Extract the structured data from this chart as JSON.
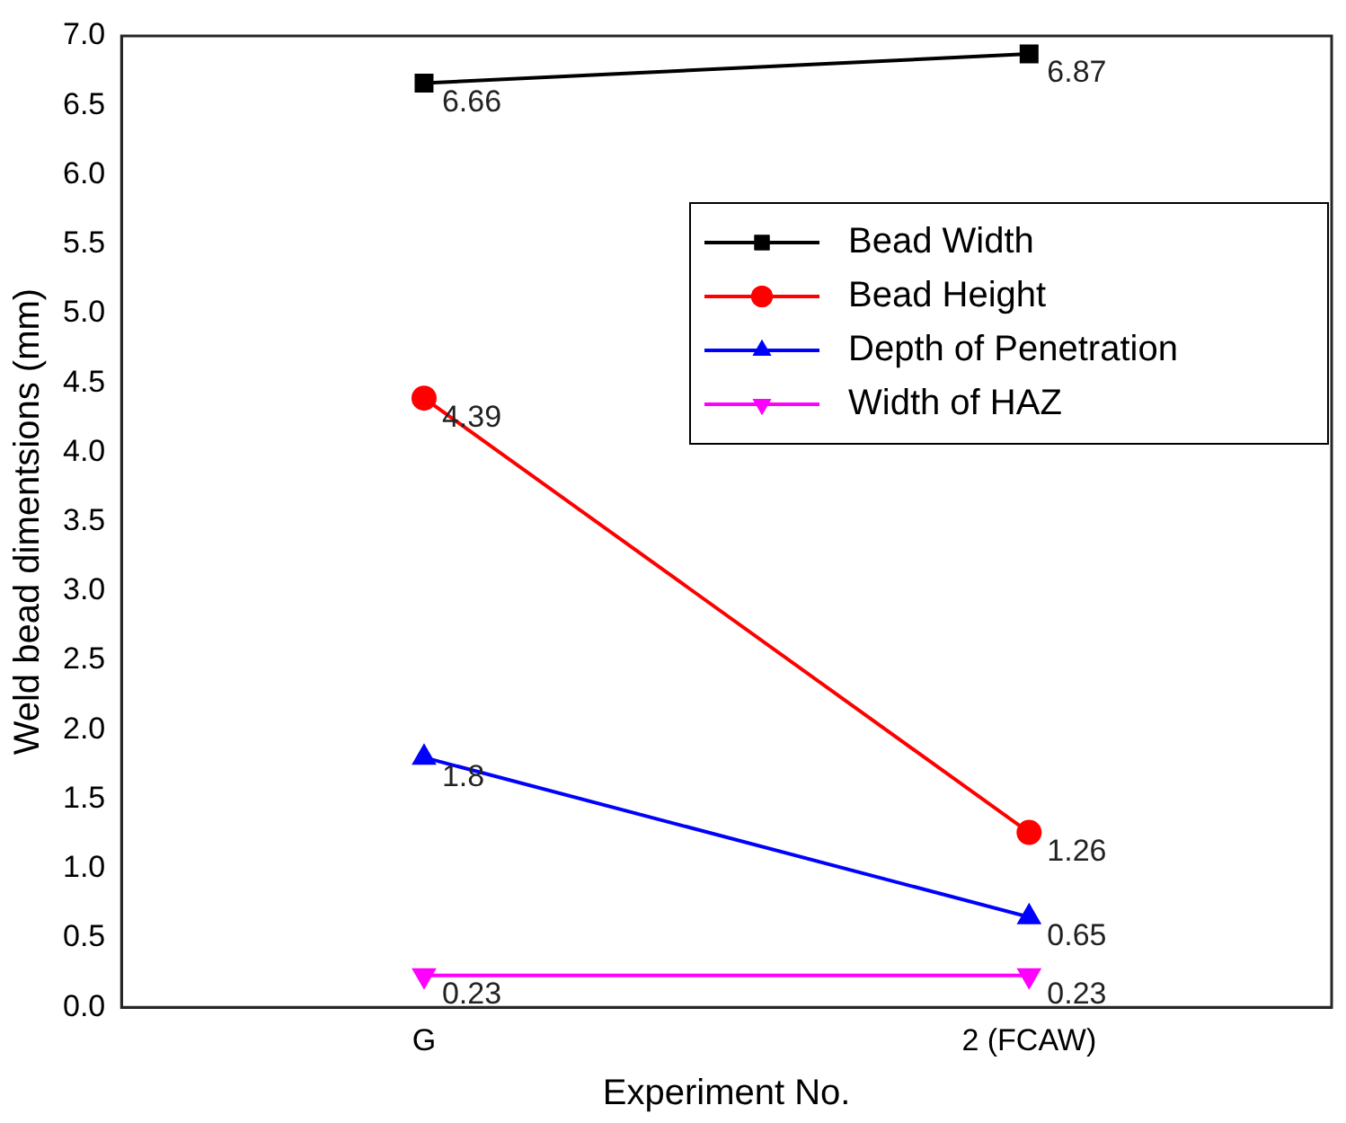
{
  "chart_data": {
    "type": "line",
    "xlabel": "Experiment No.",
    "ylabel": "Weld bead dimentsions (mm)",
    "categories": [
      "G",
      "2 (FCAW)"
    ],
    "series": [
      {
        "name": "Bead Width",
        "color": "#000000",
        "values": [
          6.66,
          6.87
        ],
        "marker": "square"
      },
      {
        "name": "Bead Height",
        "color": "#ff0000",
        "values": [
          4.39,
          1.26
        ],
        "marker": "circle"
      },
      {
        "name": "Depth of Penetration",
        "color": "#0000ff",
        "values": [
          1.8,
          0.65
        ],
        "marker": "triangle"
      },
      {
        "name": "Width of HAZ",
        "color": "#ff00ff",
        "values": [
          0.23,
          0.23
        ],
        "marker": "triangle_down"
      }
    ],
    "ylim": [
      0,
      7
    ],
    "yticks": [
      {
        "value": 0,
        "label": "0.0"
      },
      0.5,
      {
        "value": 1,
        "label": "1.0"
      },
      1.5,
      {
        "value": 2,
        "label": "2.0"
      },
      2.5,
      {
        "value": 3,
        "label": "3.0"
      },
      3.5,
      {
        "value": 4,
        "label": "4.0"
      },
      4.5,
      {
        "value": 5,
        "label": "5.0"
      },
      5.5,
      {
        "value": 6,
        "label": "6.0"
      },
      6.5,
      {
        "value": 7,
        "label": "7.0"
      }
    ],
    "grid": false,
    "legend": "top right",
    "data_labels": true,
    "line_style": "solid"
  }
}
